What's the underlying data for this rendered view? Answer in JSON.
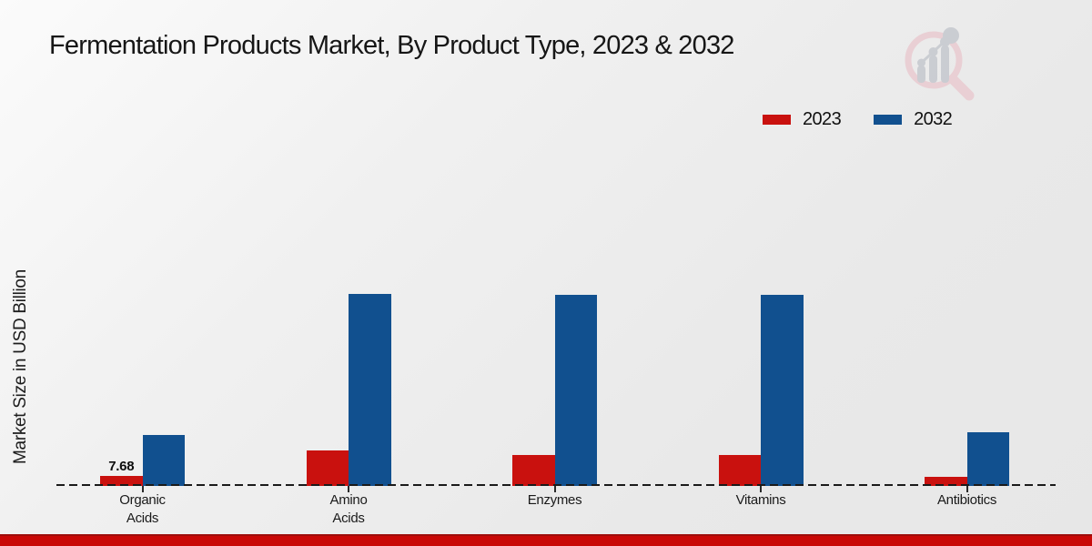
{
  "title": "Fermentation Products Market, By Product Type, 2023 & 2032",
  "y_axis": {
    "label": "Market Size in USD Billion"
  },
  "legend": {
    "items": [
      {
        "label": "2023",
        "color": "#c9110e"
      },
      {
        "label": "2032",
        "color": "#11508f"
      }
    ]
  },
  "branding": {
    "logo_icon": "magnifier-bar-chart-logo"
  },
  "footer": {
    "accent_color": "#c90806"
  },
  "chart_data": {
    "type": "bar",
    "title": "Fermentation Products Market, By Product Type, 2023 & 2032",
    "categories": [
      "Organic Acids",
      "Amino Acids",
      "Enzymes",
      "Vitamins",
      "Antibiotics"
    ],
    "categories_display": [
      [
        "Organic",
        "Acids"
      ],
      [
        "Amino",
        "Acids"
      ],
      [
        "Enzymes"
      ],
      [
        "Vitamins"
      ],
      [
        "Antibiotics"
      ]
    ],
    "series": [
      {
        "name": "2023",
        "color": "#c9110e",
        "values": [
          7.68,
          30.7,
          26.7,
          26.7,
          7.3
        ]
      },
      {
        "name": "2032",
        "color": "#11508f",
        "values": [
          44.5,
          170,
          169,
          169,
          47
        ]
      }
    ],
    "data_labels": [
      {
        "series": "2023",
        "category": "Organic Acids",
        "text": "7.68"
      }
    ],
    "xlabel": "",
    "ylabel": "Market Size in USD Billion",
    "ylim": [
      0,
      310
    ],
    "grid": false,
    "axis_line": "dashed-zero-baseline",
    "legend_position": "top-right"
  }
}
